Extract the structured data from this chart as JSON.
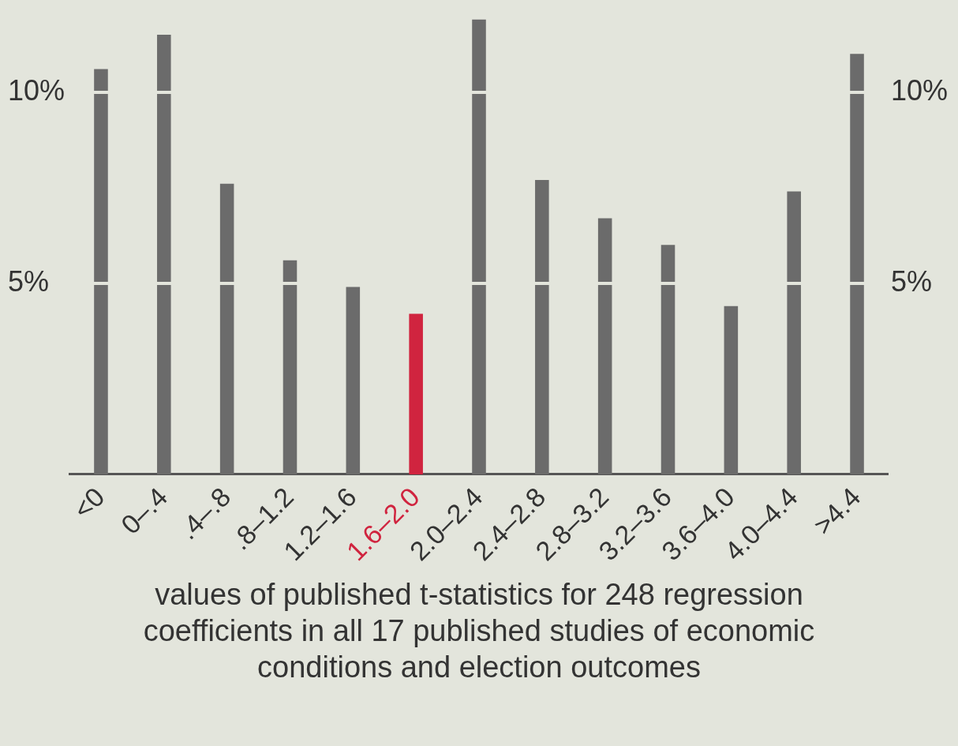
{
  "chart_data": {
    "type": "bar",
    "xlabel": "values of published t-statistics for 248 regression coefficients in all 17 published studies of economic conditions and election outcomes",
    "categories": [
      "<0",
      "0–.4",
      ".4–.8",
      ".8–1.2",
      "1.2–1.6",
      "1.6–2.0",
      "2.0–2.4",
      "2.4–2.8",
      "2.8–3.2",
      "3.2–3.6",
      "3.6–4.0",
      "4.0–4.4",
      ">4.4"
    ],
    "values": [
      10.6,
      11.5,
      7.6,
      5.6,
      4.9,
      4.2,
      11.9,
      7.7,
      6.7,
      6.0,
      4.4,
      7.4,
      11.0
    ],
    "colors": [
      "#6b6b6b",
      "#6b6b6b",
      "#6b6b6b",
      "#6b6b6b",
      "#6b6b6b",
      "#d0243f",
      "#6b6b6b",
      "#6b6b6b",
      "#6b6b6b",
      "#6b6b6b",
      "#6b6b6b",
      "#6b6b6b",
      "#6b6b6b"
    ],
    "ylim": [
      0,
      11.9
    ],
    "yticks": [
      {
        "value": 5,
        "label": "5%"
      },
      {
        "value": 10,
        "label": "10%"
      }
    ],
    "y2lim": [
      0,
      11.9
    ],
    "y2ticks": [
      {
        "value": 5,
        "label": "5%"
      },
      {
        "value": 10,
        "label": "10%"
      }
    ],
    "grid": "y",
    "legend": false
  }
}
